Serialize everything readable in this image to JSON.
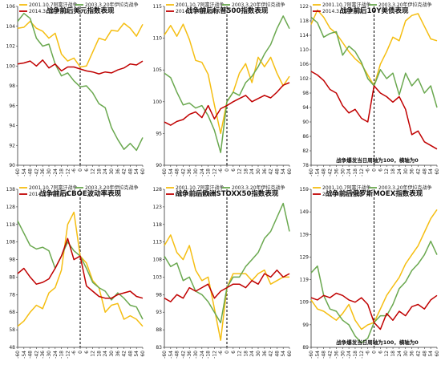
{
  "colors": {
    "afghan": "#F5BE12",
    "iraq": "#6AA84F",
    "crimea": "#C00000",
    "axis": "#333333",
    "marker": "#000000"
  },
  "legend_labels": [
    "2001.10.7阿富汗战争",
    "2003.3.20年伊拉克战争",
    "2014.3.3克里米亚"
  ],
  "x_tick_labels": [
    "-60",
    "-54",
    "-48",
    "-42",
    "-36",
    "-30",
    "-24",
    "-18",
    "-12",
    "-6",
    "0",
    "6",
    "12",
    "18",
    "24",
    "30",
    "36",
    "42",
    "48",
    "54",
    "60"
  ],
  "chart_data": [
    {
      "type": "line",
      "title": "战争前后美元指数表现",
      "x": [
        -60,
        -54,
        -48,
        -42,
        -36,
        -30,
        -24,
        -18,
        -12,
        -6,
        0,
        6,
        12,
        18,
        24,
        30,
        36,
        42,
        48,
        54,
        60
      ],
      "ylim": [
        90,
        106
      ],
      "yticks": [
        "90",
        "92",
        "94",
        "96",
        "98",
        "100",
        "102",
        "104",
        "106"
      ],
      "series": [
        {
          "name": "2001.10.7阿富汗战争",
          "values": [
            103.8,
            103.9,
            104.5,
            103.8,
            103.5,
            102.8,
            103.3,
            101.2,
            100.5,
            100.8,
            99.9,
            100.0,
            101.4,
            102.8,
            102.6,
            103.6,
            103.5,
            104.3,
            103.8,
            103.0,
            104.2
          ]
        },
        {
          "name": "2003.3.20年伊拉克战争",
          "values": [
            104.5,
            105.3,
            104.8,
            102.8,
            102.0,
            102.2,
            100.2,
            99.0,
            99.3,
            98.5,
            97.9,
            98.0,
            97.3,
            96.2,
            95.8,
            93.8,
            92.6,
            91.6,
            92.2,
            91.5,
            92.8
          ]
        },
        {
          "name": "2014.3.3克里米亚",
          "values": [
            100.2,
            100.3,
            100.5,
            100.0,
            100.6,
            99.8,
            100.2,
            99.5,
            99.9,
            99.9,
            99.7,
            99.5,
            99.4,
            99.2,
            99.4,
            99.3,
            99.6,
            99.8,
            100.2,
            100.1,
            100.5
          ]
        }
      ],
      "note": ""
    },
    {
      "type": "line",
      "title": "战争前后标普500指数表现",
      "x": [
        -60,
        -54,
        -48,
        -42,
        -36,
        -30,
        -24,
        -18,
        -12,
        -6,
        0,
        6,
        12,
        18,
        24,
        30,
        36,
        42,
        48,
        54,
        60
      ],
      "ylim": [
        90,
        115
      ],
      "yticks": [
        "90",
        "95",
        "100",
        "105",
        "110",
        "115"
      ],
      "series": [
        {
          "name": "2001.10.7阿富汗战争",
          "values": [
            110.5,
            112.0,
            110.3,
            112.2,
            109.8,
            106.5,
            106.2,
            104.3,
            99.5,
            95.0,
            100.0,
            101.5,
            104.5,
            106.0,
            103.0,
            107.0,
            105.5,
            107.0,
            104.5,
            102.5,
            104.0
          ]
        },
        {
          "name": "2003.3.20年伊拉克战争",
          "values": [
            104.5,
            103.8,
            101.5,
            99.5,
            99.8,
            99.0,
            99.4,
            97.8,
            95.5,
            92.0,
            100.0,
            101.5,
            101.0,
            103.0,
            104.0,
            105.5,
            107.5,
            109.0,
            111.5,
            113.5,
            111.5
          ]
        },
        {
          "name": "2014.3.3克里米亚",
          "values": [
            96.8,
            96.3,
            96.9,
            97.2,
            98.0,
            98.4,
            97.5,
            99.4,
            97.3,
            98.9,
            99.4,
            100.0,
            100.5,
            101.0,
            100.0,
            100.5,
            101.0,
            100.6,
            101.5,
            102.6,
            103.0
          ]
        }
      ],
      "note": ""
    },
    {
      "type": "line",
      "title": "战争前后10Y美债表现",
      "x": [
        -60,
        -54,
        -48,
        -42,
        -36,
        -30,
        -24,
        -18,
        -12,
        -6,
        0,
        6,
        12,
        18,
        24,
        30,
        36,
        42,
        48,
        54,
        60
      ],
      "ylim": [
        78,
        122
      ],
      "yticks": [
        "78",
        "82",
        "86",
        "90",
        "94",
        "98",
        "102",
        "106",
        "110",
        "114",
        "118",
        "122"
      ],
      "series": [
        {
          "name": "2001.10.7阿富汗战争",
          "values": [
            117.0,
            121.0,
            119.0,
            116.0,
            114.5,
            112.0,
            109.5,
            107.5,
            106.0,
            103.0,
            100.0,
            106.0,
            109.5,
            113.5,
            112.5,
            118.0,
            119.5,
            120.0,
            116.5,
            113.0,
            112.5
          ]
        },
        {
          "name": "2003.3.20年伊拉克战争",
          "values": [
            119.0,
            117.5,
            113.5,
            114.5,
            115.0,
            108.5,
            111.0,
            109.5,
            106.5,
            102.0,
            100.0,
            104.5,
            102.0,
            103.5,
            97.5,
            103.5,
            100.0,
            102.0,
            98.0,
            100.0,
            94.0
          ]
        },
        {
          "name": "2014.3.3克里米亚",
          "values": [
            104.0,
            103.0,
            101.5,
            99.0,
            98.0,
            94.5,
            92.5,
            93.5,
            91.0,
            90.0,
            100.0,
            98.0,
            97.0,
            95.5,
            97.0,
            93.5,
            86.5,
            87.5,
            84.5,
            83.5,
            82.5
          ]
        }
      ],
      "note": "战争爆发当日周轴为100，横轴为0"
    },
    {
      "type": "line",
      "title": "战争前后CBOE波动率表现",
      "x": [
        -60,
        -54,
        -48,
        -42,
        -36,
        -30,
        -24,
        -18,
        -12,
        -6,
        0,
        6,
        12,
        18,
        24,
        30,
        36,
        42,
        48,
        54,
        60
      ],
      "ylim": [
        48,
        138
      ],
      "yticks": [
        "48",
        "58",
        "68",
        "78",
        "88",
        "98",
        "108",
        "118",
        "128",
        "138"
      ],
      "series": [
        {
          "name": "2001.10.7阿富汗战争",
          "values": [
            60.0,
            63.0,
            68.0,
            72.0,
            70.0,
            79.0,
            82.0,
            92.0,
            118.0,
            125.0,
            100.0,
            96.0,
            86.0,
            82.0,
            68.0,
            72.0,
            73.0,
            64.0,
            66.0,
            64.0,
            60.0
          ]
        },
        {
          "name": "2003.3.20年伊拉克战争",
          "values": [
            120.0,
            113.0,
            106.0,
            104.0,
            105.0,
            103.0,
            93.0,
            100.0,
            108.0,
            103.0,
            100.0,
            93.0,
            85.0,
            82.0,
            80.0,
            75.0,
            79.0,
            76.0,
            72.0,
            71.0,
            64.0
          ]
        },
        {
          "name": "2014.3.3克里米亚",
          "values": [
            90.0,
            93.0,
            88.0,
            84.0,
            85.0,
            87.0,
            93.0,
            100.0,
            110.0,
            98.0,
            100.0,
            83.0,
            80.0,
            77.0,
            76.0,
            76.0,
            78.0,
            79.0,
            80.0,
            77.0,
            76.0
          ]
        }
      ],
      "note": ""
    },
    {
      "type": "line",
      "title": "战争前后欧洲STOXX50指数表现",
      "x": [
        -60,
        -54,
        -48,
        -42,
        -36,
        -30,
        -24,
        -18,
        -12,
        -6,
        0,
        6,
        12,
        18,
        24,
        30,
        36,
        42,
        48,
        54,
        60
      ],
      "ylim": [
        83,
        128
      ],
      "yticks": [
        "83",
        "88",
        "93",
        "98",
        "103",
        "108",
        "113",
        "118",
        "123",
        "128"
      ],
      "series": [
        {
          "name": "2001.10.7阿富汗战争",
          "values": [
            112.0,
            115.0,
            110.0,
            108.0,
            112.0,
            105.0,
            102.0,
            103.0,
            94.0,
            85.0,
            100.0,
            104.0,
            104.0,
            104.0,
            102.0,
            104.0,
            105.0,
            101.0,
            102.0,
            103.0,
            103.0
          ]
        },
        {
          "name": "2003.3.20年伊拉克战争",
          "values": [
            109.0,
            106.0,
            107.0,
            102.0,
            103.0,
            99.0,
            98.0,
            96.0,
            93.0,
            90.0,
            100.0,
            103.0,
            103.0,
            106.0,
            108.0,
            110.0,
            114.0,
            116.0,
            120.0,
            124.0,
            116.0
          ]
        },
        {
          "name": "2014.3.3克里米亚",
          "values": [
            97.0,
            96.0,
            98.0,
            97.0,
            100.0,
            99.0,
            100.0,
            101.0,
            97.0,
            99.0,
            100.0,
            101.0,
            101.0,
            100.0,
            102.0,
            101.0,
            104.0,
            103.0,
            105.0,
            103.0,
            104.0
          ]
        }
      ],
      "note": ""
    },
    {
      "type": "line",
      "title": "战争前后俄罗斯MOEX指数表现",
      "x": [
        -60,
        -54,
        -48,
        -42,
        -36,
        -30,
        -24,
        -18,
        -12,
        -6,
        0,
        6,
        12,
        18,
        24,
        30,
        36,
        42,
        48,
        54,
        60
      ],
      "ylim": [
        89,
        159
      ],
      "yticks": [
        "89",
        "99",
        "109",
        "119",
        "129",
        "139",
        "149",
        "159"
      ],
      "series": [
        {
          "name": "2001.10.7阿富汗战争",
          "values": [
            110.0,
            106.0,
            105.0,
            103.0,
            101.0,
            104.0,
            108.0,
            101.0,
            97.0,
            99.0,
            100.0,
            106.0,
            112.0,
            116.0,
            120.0,
            126.0,
            130.0,
            134.0,
            140.0,
            146.0,
            150.0
          ]
        },
        {
          "name": "2003.3.20年伊拉克战争",
          "values": [
            122.0,
            125.0,
            112.0,
            106.0,
            105.0,
            101.0,
            99.0,
            94.0,
            91.0,
            93.0,
            100.0,
            103.0,
            103.0,
            108.0,
            115.0,
            118.0,
            123.0,
            126.0,
            130.0,
            136.0,
            130.0
          ]
        },
        {
          "name": "2014.3.3克里米亚",
          "values": [
            111.0,
            110.0,
            112.0,
            111.0,
            113.0,
            112.0,
            110.0,
            109.0,
            111.0,
            108.0,
            100.0,
            97.0,
            104.0,
            101.0,
            105.0,
            103.0,
            107.0,
            108.0,
            106.0,
            110.0,
            112.0
          ]
        }
      ],
      "note": "战争爆发当日周轴为100，横轴为0"
    }
  ]
}
